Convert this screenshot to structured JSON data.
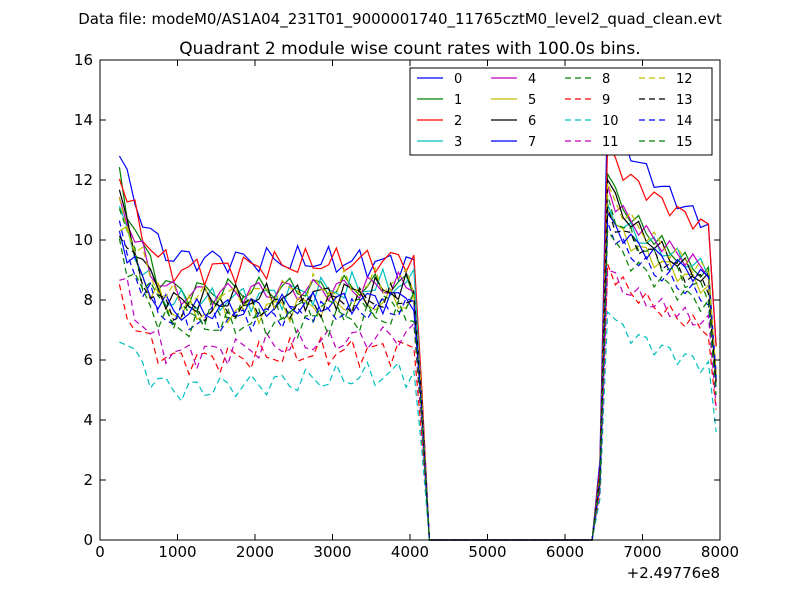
{
  "chart_data": {
    "type": "line",
    "suptitle": "Data file: modeM0/AS1A04_231T01_9000001740_11765cztM0_level2_quad_clean.evt",
    "title": "Quadrant 2 module wise count rates with 100.0s bins.",
    "xlabel": "",
    "ylabel": "",
    "x_offset_label": "+2.49776e8",
    "xlim": [
      0,
      8000
    ],
    "ylim": [
      0,
      16
    ],
    "xticks": [
      0,
      1000,
      2000,
      3000,
      4000,
      5000,
      6000,
      7000,
      8000
    ],
    "yticks": [
      0,
      2,
      4,
      6,
      8,
      10,
      12,
      14,
      16
    ],
    "legend_location": "top-right",
    "x_seg1": [
      250,
      350,
      450,
      550,
      650,
      750,
      850,
      950,
      1050,
      1150,
      1250,
      1350,
      1450,
      1550,
      1650,
      1750,
      1850,
      1950,
      2050,
      2150,
      2250,
      2350,
      2450,
      2550,
      2650,
      2750,
      2850,
      2950,
      3050,
      3150,
      3250,
      3350,
      3450,
      3550,
      3650,
      3750,
      3850,
      3950,
      4050,
      4150,
      4250
    ],
    "x_seg2": [
      6350,
      6450,
      6550,
      6650,
      6750,
      6850,
      6950,
      7050,
      7150,
      7250,
      7350,
      7450,
      7550,
      7650,
      7750,
      7850,
      7950
    ],
    "series": [
      {
        "name": "0",
        "color": "#0000ff",
        "dash": "solid",
        "start": 12.8,
        "mid": 9.4,
        "end": 9.2,
        "v2": 14.6,
        "e2": 10.5
      },
      {
        "name": "1",
        "color": "#008000",
        "dash": "solid",
        "start": 12.0,
        "mid": 8.3,
        "end": 8.5,
        "v2": 12.2,
        "e2": 8.8
      },
      {
        "name": "2",
        "color": "#ff0000",
        "dash": "solid",
        "start": 12.2,
        "mid": 9.0,
        "end": 9.4,
        "v2": 13.2,
        "e2": 10.4
      },
      {
        "name": "3",
        "color": "#00bfbf",
        "dash": "solid",
        "start": 10.9,
        "mid": 7.9,
        "end": 8.6,
        "v2": 11.2,
        "e2": 9.0
      },
      {
        "name": "4",
        "color": "#bf00bf",
        "dash": "solid",
        "start": 11.5,
        "mid": 8.2,
        "end": 8.5,
        "v2": 11.8,
        "e2": 9.0
      },
      {
        "name": "5",
        "color": "#bfbf00",
        "dash": "solid",
        "start": 10.8,
        "mid": 7.6,
        "end": 8.0,
        "v2": 11.0,
        "e2": 8.4
      },
      {
        "name": "6",
        "color": "#000000",
        "dash": "solid",
        "start": 11.4,
        "mid": 7.9,
        "end": 8.4,
        "v2": 12.0,
        "e2": 8.6
      },
      {
        "name": "7",
        "color": "#0000ff",
        "dash": "solid",
        "start": 10.3,
        "mid": 7.6,
        "end": 8.1,
        "v2": 10.9,
        "e2": 8.7
      },
      {
        "name": "8",
        "color": "#008000",
        "dash": "dashed",
        "start": 11.0,
        "mid": 7.5,
        "end": 7.9,
        "v2": 11.5,
        "e2": 8.2
      },
      {
        "name": "9",
        "color": "#ff0000",
        "dash": "dashed",
        "start": 8.1,
        "mid": 6.0,
        "end": 6.4,
        "v2": 9.2,
        "e2": 7.0
      },
      {
        "name": "10",
        "color": "#00bfbf",
        "dash": "dashed",
        "start": 7.0,
        "mid": 5.0,
        "end": 5.6,
        "v2": 7.6,
        "e2": 5.8
      },
      {
        "name": "11",
        "color": "#bf00bf",
        "dash": "dashed",
        "start": 8.8,
        "mid": 6.2,
        "end": 6.9,
        "v2": 9.0,
        "e2": 7.2
      },
      {
        "name": "12",
        "color": "#bfbf00",
        "dash": "dashed",
        "start": 11.3,
        "mid": 8.0,
        "end": 8.7,
        "v2": 11.9,
        "e2": 8.9
      },
      {
        "name": "13",
        "color": "#000000",
        "dash": "dashed",
        "start": 10.4,
        "mid": 7.6,
        "end": 8.1,
        "v2": 11.1,
        "e2": 8.5
      },
      {
        "name": "14",
        "color": "#0000ff",
        "dash": "dashed",
        "start": 10.2,
        "mid": 7.3,
        "end": 7.8,
        "v2": 10.6,
        "e2": 8.0
      },
      {
        "name": "15",
        "color": "#008000",
        "dash": "dashed",
        "start": 9.9,
        "mid": 7.1,
        "end": 7.5,
        "v2": 10.3,
        "e2": 7.8
      }
    ]
  }
}
